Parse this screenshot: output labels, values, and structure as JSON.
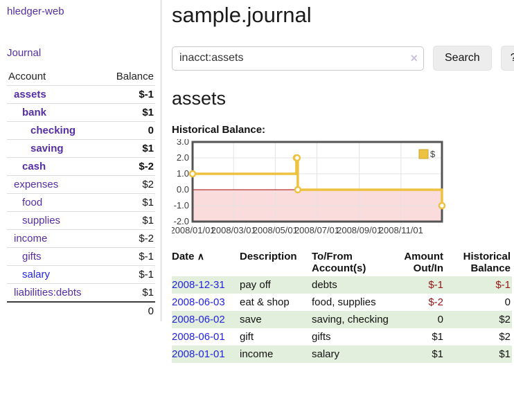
{
  "app": {
    "brand": "hledger-web",
    "nav_journal": "Journal"
  },
  "sidebar": {
    "headers": [
      "Account",
      "Balance"
    ],
    "rows": [
      {
        "account": "assets",
        "balance": "$-1",
        "level": 1,
        "bold": true,
        "color": "purple",
        "bal_class": "neg"
      },
      {
        "account": "bank",
        "balance": "$1",
        "level": 2,
        "bold": true,
        "color": "purple",
        "bal_class": ""
      },
      {
        "account": "checking",
        "balance": "0",
        "level": 3,
        "bold": true,
        "color": "purple",
        "bal_class": ""
      },
      {
        "account": "saving",
        "balance": "$1",
        "level": 3,
        "bold": true,
        "color": "purple",
        "bal_class": ""
      },
      {
        "account": "cash",
        "balance": "$-2",
        "level": 2,
        "bold": true,
        "color": "purple",
        "bal_class": "neg"
      },
      {
        "account": "expenses",
        "balance": "$2",
        "level": 1,
        "bold": false,
        "color": "purple",
        "bal_class": ""
      },
      {
        "account": "food",
        "balance": "$1",
        "level": 2,
        "bold": false,
        "color": "purple",
        "bal_class": ""
      },
      {
        "account": "supplies",
        "balance": "$1",
        "level": 2,
        "bold": false,
        "color": "purple",
        "bal_class": ""
      },
      {
        "account": "income",
        "balance": "$-2",
        "level": 1,
        "bold": false,
        "color": "purple",
        "bal_class": "negmuted"
      },
      {
        "account": "gifts",
        "balance": "$-1",
        "level": 2,
        "bold": false,
        "color": "purple",
        "bal_class": "negmuted"
      },
      {
        "account": "salary",
        "balance": "$-1",
        "level": 2,
        "bold": false,
        "color": "blue",
        "bal_class": "negmuted"
      },
      {
        "account": "liabilities:debts",
        "balance": "$1",
        "level": 1,
        "bold": false,
        "color": "purple",
        "bal_class": ""
      }
    ],
    "total": "0"
  },
  "main": {
    "title": "sample.journal",
    "search": {
      "value": "inacct:assets",
      "clear_label": "×",
      "button": "Search",
      "help_button": "?"
    },
    "account_heading": "assets",
    "chart_label": "Historical Balance:",
    "register": {
      "sort_icon": "∧",
      "headers": [
        {
          "label": "Date"
        },
        {
          "label": "Description"
        },
        {
          "label": "To/From Account(s)"
        },
        {
          "label": "Amount Out/In"
        },
        {
          "label": "Historical Balance"
        }
      ],
      "rows": [
        {
          "date": "2008-12-31",
          "description": "pay off",
          "accounts": "debts",
          "amount": "$-1",
          "amount_class": "neg",
          "balance": "$-1",
          "balance_class": "neg"
        },
        {
          "date": "2008-06-03",
          "description": "eat & shop",
          "accounts": "food, supplies",
          "amount": "$-2",
          "amount_class": "neg",
          "balance": "0",
          "balance_class": ""
        },
        {
          "date": "2008-06-02",
          "description": "save",
          "accounts": "saving, checking",
          "amount": "0",
          "amount_class": "",
          "balance": "$2",
          "balance_class": ""
        },
        {
          "date": "2008-06-01",
          "description": "gift",
          "accounts": "gifts",
          "amount": "$1",
          "amount_class": "",
          "balance": "$2",
          "balance_class": ""
        },
        {
          "date": "2008-01-01",
          "description": "income",
          "accounts": "salary",
          "amount": "$1",
          "amount_class": "",
          "balance": "$1",
          "balance_class": ""
        }
      ]
    }
  },
  "chart_data": {
    "type": "line",
    "style": "step",
    "title": "Historical Balance",
    "series": [
      {
        "name": "$",
        "points": [
          [
            "2008-01-01",
            1
          ],
          [
            "2008-06-01",
            2
          ],
          [
            "2008-06-02",
            2
          ],
          [
            "2008-06-03",
            0
          ],
          [
            "2008-12-31",
            -1
          ]
        ]
      }
    ],
    "x_range": [
      "2008-01-01",
      "2008-12-31"
    ],
    "ylim": [
      -2,
      3
    ],
    "x_ticks": [
      "2008/01/01",
      "2008/03/01",
      "2008/05/01",
      "2008/07/01",
      "2008/09/01",
      "2008/11/01"
    ],
    "y_ticks": [
      3,
      2,
      1,
      0,
      -1,
      -2
    ],
    "legend": {
      "label": "$",
      "position": "top-right"
    },
    "grid": true,
    "colors": {
      "line": "#edc240",
      "marker_fill": "#ffffff",
      "negative_region": "#fbdcdc",
      "zero_line": "#a40000",
      "grid": "#e3e3e3",
      "border": "#545454",
      "legend_swatch_border": "#c9a52c"
    }
  }
}
